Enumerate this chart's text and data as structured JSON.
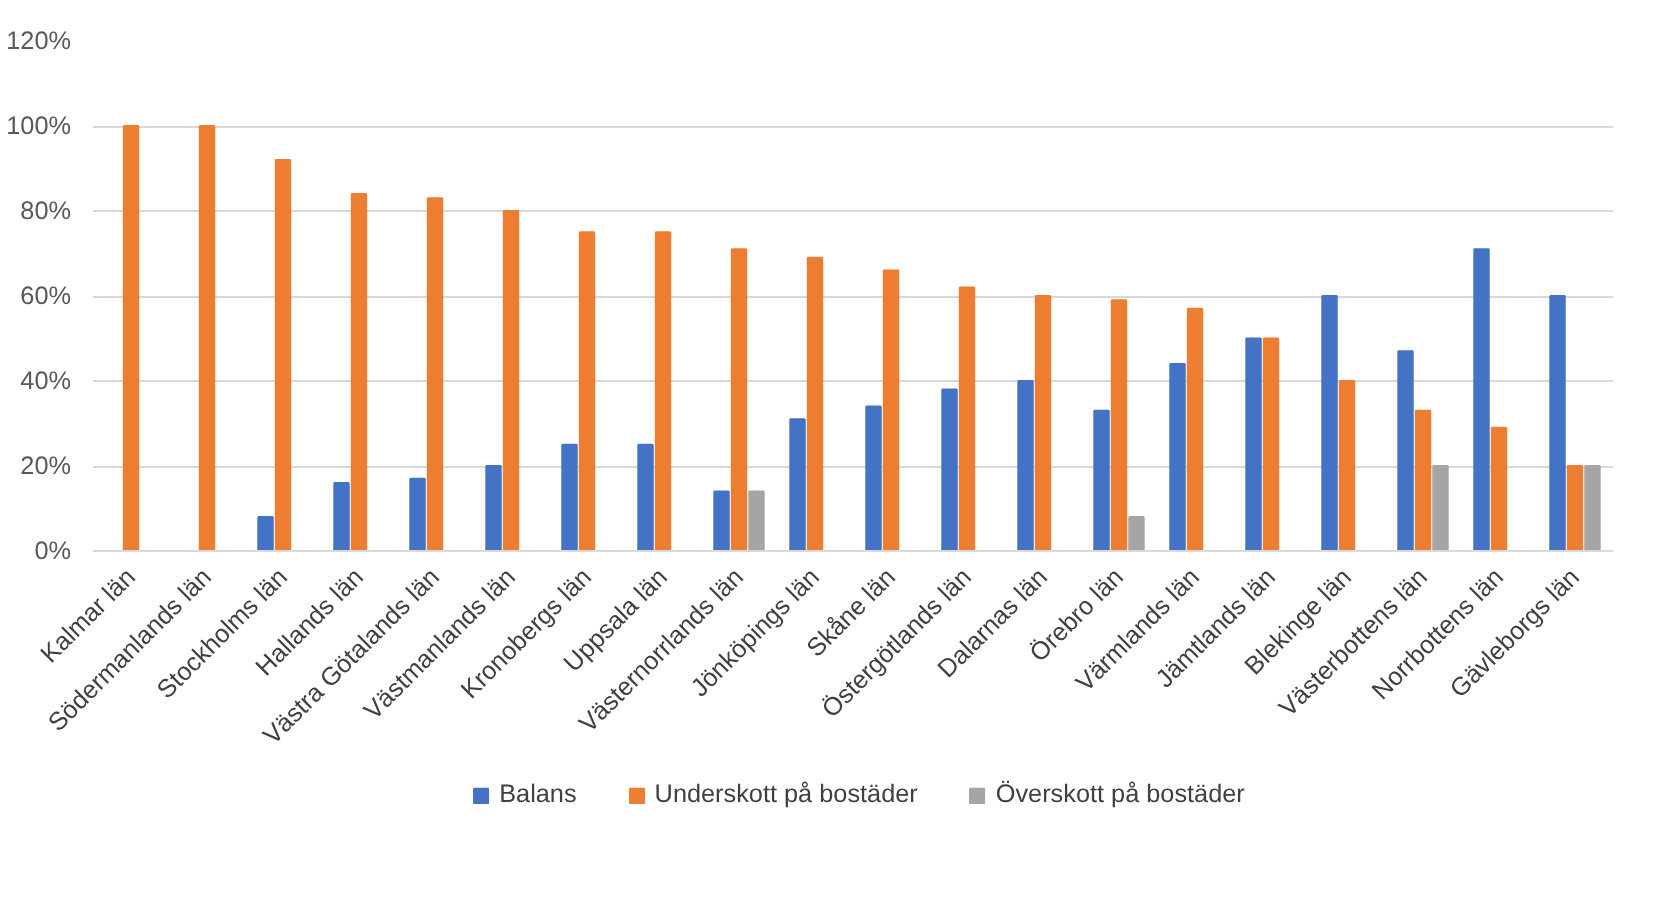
{
  "chart_data": {
    "type": "bar",
    "categories": [
      "Kalmar län",
      "Södermanlands län",
      "Stockholms län",
      "Hallands län",
      "Västra Götalands län",
      "Västmanlands län",
      "Kronobergs län",
      "Uppsala län",
      "Västernorrlands län",
      "Jönköpings län",
      "Skåne län",
      "Östergötlands län",
      "Dalarnas län",
      "Örebro län",
      "Värmlands län",
      "Jämtlands län",
      "Blekinge län",
      "Västerbottens län",
      "Norrbottens län",
      "Gävleborgs län"
    ],
    "series": [
      {
        "name": "Balans",
        "color": "#4472c4",
        "values": [
          null,
          null,
          8,
          16,
          17,
          20,
          25,
          25,
          14,
          31,
          34,
          38,
          40,
          33,
          44,
          50,
          60,
          47,
          71,
          60
        ]
      },
      {
        "name": "Underskott på bostäder",
        "color": "#ed7d31",
        "values": [
          100,
          100,
          92,
          84,
          83,
          80,
          75,
          75,
          71,
          69,
          66,
          62,
          60,
          59,
          57,
          50,
          40,
          33,
          29,
          20
        ]
      },
      {
        "name": "Överskott på bostäder",
        "color": "#a5a5a5",
        "values": [
          null,
          null,
          null,
          null,
          null,
          null,
          null,
          null,
          14,
          null,
          null,
          null,
          null,
          8,
          null,
          null,
          null,
          20,
          null,
          20
        ]
      }
    ],
    "ylim": [
      0,
      120
    ],
    "yticks": [
      {
        "value": 0,
        "label": "0%"
      },
      {
        "value": 20,
        "label": "20%"
      },
      {
        "value": 40,
        "label": "40%"
      },
      {
        "value": 60,
        "label": "60%"
      },
      {
        "value": 80,
        "label": "80%"
      },
      {
        "value": 100,
        "label": "100%"
      },
      {
        "value": 120,
        "label": "120%"
      }
    ],
    "grid": "y",
    "legend": "bottom"
  }
}
